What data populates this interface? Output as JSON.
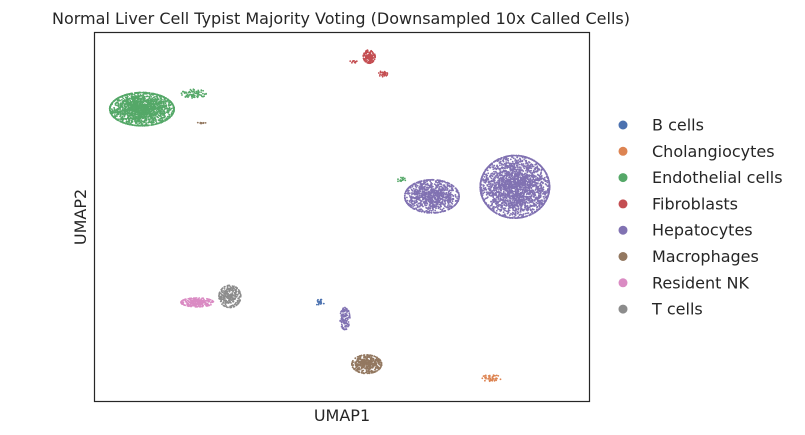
{
  "chart_data": {
    "type": "scatter",
    "title": "Normal Liver Cell Typist Majority Voting (Downsampled 10x Called Cells)",
    "xlabel": "UMAP1",
    "ylabel": "UMAP2",
    "xticks": [],
    "yticks": [],
    "xlim": [
      0,
      100
    ],
    "ylim": [
      0,
      100
    ],
    "grid": false,
    "legend": {
      "position": "right",
      "title": ""
    },
    "series": [
      {
        "name": "B cells",
        "color": "#4c72b0",
        "clusters": [
          {
            "center": [
              45.5,
              26.8
            ],
            "spread": [
              0.9,
              0.8
            ],
            "count": 20
          }
        ]
      },
      {
        "name": "Cholangiocytes",
        "color": "#dd8452",
        "clusters": [
          {
            "center": [
              80.2,
              6.2
            ],
            "spread": [
              2.0,
              0.9
            ],
            "count": 45
          }
        ]
      },
      {
        "name": "Endothelial cells",
        "color": "#55a868",
        "clusters": [
          {
            "center": [
              9.5,
              79.3
            ],
            "spread": [
              6.5,
              4.5
            ],
            "count": 1700
          },
          {
            "center": [
              20.0,
              83.5
            ],
            "spread": [
              2.5,
              1.2
            ],
            "count": 70
          },
          {
            "center": [
              61.9,
              60.2
            ],
            "spread": [
              1.0,
              0.6
            ],
            "count": 15
          }
        ]
      },
      {
        "name": "Fibroblasts",
        "color": "#c44e52",
        "clusters": [
          {
            "center": [
              55.5,
              93.6
            ],
            "spread": [
              1.2,
              1.8
            ],
            "count": 140
          },
          {
            "center": [
              58.3,
              88.9
            ],
            "spread": [
              0.9,
              0.8
            ],
            "count": 30
          },
          {
            "center": [
              52.3,
              92.1
            ],
            "spread": [
              0.8,
              0.5
            ],
            "count": 10
          }
        ]
      },
      {
        "name": "Hepatocytes",
        "color": "#8172b2",
        "clusters": [
          {
            "center": [
              85.0,
              58.2
            ],
            "spread": [
              7.0,
              8.5
            ],
            "count": 2400
          },
          {
            "center": [
              68.2,
              55.6
            ],
            "spread": [
              5.5,
              4.5
            ],
            "count": 1000
          },
          {
            "center": [
              50.6,
              22.4
            ],
            "spread": [
              1.0,
              3.0
            ],
            "count": 110
          }
        ]
      },
      {
        "name": "Macrophages",
        "color": "#937860",
        "clusters": [
          {
            "center": [
              55.0,
              10.0
            ],
            "spread": [
              3.0,
              2.5
            ],
            "count": 420
          },
          {
            "center": [
              21.6,
              75.6
            ],
            "spread": [
              0.8,
              0.4
            ],
            "count": 10
          }
        ]
      },
      {
        "name": "Resident NK",
        "color": "#da8bc3",
        "clusters": [
          {
            "center": [
              20.7,
              26.8
            ],
            "spread": [
              3.3,
              1.2
            ],
            "count": 260
          }
        ]
      },
      {
        "name": "T cells",
        "color": "#8c8c8c",
        "clusters": [
          {
            "center": [
              27.3,
              28.4
            ],
            "spread": [
              2.2,
              3.0
            ],
            "count": 280
          }
        ]
      }
    ]
  }
}
